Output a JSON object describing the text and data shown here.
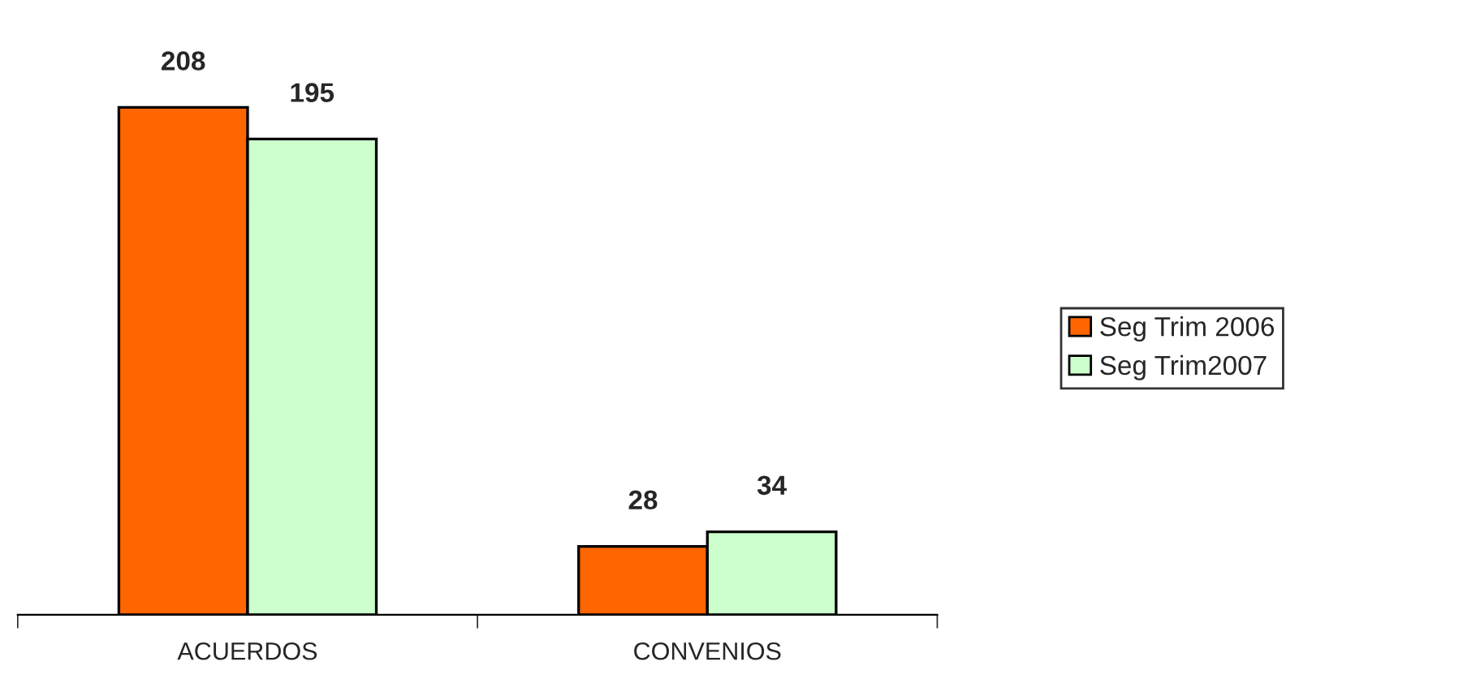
{
  "chart_data": {
    "type": "bar",
    "categories": [
      "ACUERDOS",
      "CONVENIOS"
    ],
    "series": [
      {
        "name": "Seg Trim 2006",
        "color": "#ff6600",
        "values": [
          208,
          28
        ]
      },
      {
        "name": "Seg Trim2007",
        "color": "#ccffcc",
        "values": [
          195,
          34
        ]
      }
    ],
    "data_labels": true,
    "legend": "right",
    "grid": false
  }
}
